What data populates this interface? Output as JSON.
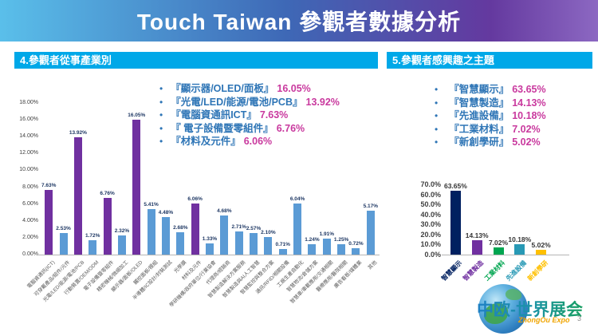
{
  "title": "Touch Taiwan 參觀者數據分析",
  "sections": {
    "left": {
      "header": "4.參觀者從事產業別",
      "bullets": [
        {
          "label": "『顯示器/OLED/面板』",
          "value": "16.05%"
        },
        {
          "label": "『光電/LED/能源/電池/PCB』",
          "value": "13.92%"
        },
        {
          "label": "『電腦資通訊ICT』",
          "value": "7.63%"
        },
        {
          "label": "『 電子設備暨零組件』",
          "value": "6.76%"
        },
        {
          "label": "『材料及元件』",
          "value": "6.06%"
        }
      ]
    },
    "right": {
      "header": "5.參觀者感興趣之主題",
      "bullets": [
        {
          "label": "『智慧顯示』",
          "value": "63.65%"
        },
        {
          "label": "『智慧製造』",
          "value": "14.13%"
        },
        {
          "label": "『先進設備』",
          "value": "10.18%"
        },
        {
          "label": "『工業材料』",
          "value": "7.02%"
        },
        {
          "label": "『新創學研』",
          "value": "5.02%"
        }
      ]
    }
  },
  "chart_data": [
    {
      "type": "bar",
      "title": "",
      "xlabel": "",
      "ylabel": "",
      "ylim": [
        0,
        18
      ],
      "grid": false,
      "legend": "none",
      "y_ticks": [
        "0.00%",
        "2.00%",
        "4.00%",
        "6.00%",
        "8.00%",
        "10.00%",
        "12.00%",
        "14.00%",
        "16.00%",
        "18.00%"
      ],
      "categories": [
        "電腦資通訊(ICT)",
        "可穿戴產品/組件/元件",
        "光電/LED/能源/電池/PCB",
        "行動裝置/OEM/ODM",
        "電子設備暨零組件",
        "精密機械/微細加工",
        "顯示器/面板/OLED",
        "觸控面板/模組",
        "半導體/IC設計/封裝測試",
        "光學膜",
        "材料及元件",
        "學研機構/政府單位/行業協會",
        "代理商/經銷商",
        "智慧製造解決方案服務",
        "智慧製造與AI人工智慧",
        "智慧監控與整合方案",
        "通訊/RFID/相關設備",
        "工廠生產自動化",
        "智慧物流/倉儲方案",
        "智慧車/車載應用/交通相關",
        "醫療應用/醫院相關",
        "廣告看板/媒體業",
        "其他"
      ],
      "values": [
        7.63,
        2.53,
        13.92,
        1.72,
        6.76,
        2.32,
        16.05,
        5.41,
        4.48,
        2.68,
        6.06,
        1.33,
        4.68,
        2.71,
        2.57,
        2.1,
        0.71,
        6.04,
        1.24,
        1.91,
        1.25,
        0.72,
        5.17
      ],
      "value_labels": [
        "7.63%",
        "2.53%",
        "13.92%",
        "1.72%",
        "6.76%",
        "2.32%",
        "16.05%",
        "5.41%",
        "4.48%",
        "2.68%",
        "6.06%",
        "1.33%",
        "4.68%",
        "2.71%",
        "2.57%",
        "2.10%",
        "0.71%",
        "6.04%",
        "1.24%",
        "1.91%",
        "1.25%",
        "0.72%",
        "5.17%"
      ],
      "highlight_indices": [
        0,
        2,
        4,
        6,
        10
      ],
      "colors": {
        "default": "#5B9BD5",
        "highlight": "#7030A0"
      }
    },
    {
      "type": "bar",
      "title": "",
      "xlabel": "",
      "ylabel": "",
      "ylim": [
        0,
        70
      ],
      "grid": false,
      "legend": "none",
      "y_ticks": [
        "0.0%",
        "10.0%",
        "20.0%",
        "30.0%",
        "40.0%",
        "50.0%",
        "60.0%",
        "70.0%"
      ],
      "categories": [
        "智慧顯示",
        "智慧製造",
        "工業材料",
        "先進設備",
        "新創學研"
      ],
      "values": [
        63.65,
        14.13,
        7.02,
        10.18,
        5.02
      ],
      "value_labels": [
        "63.65%",
        "14.13%",
        "7.02%",
        "10.18%",
        "5.02%"
      ],
      "bar_colors": [
        "#002060",
        "#7030A0",
        "#00A550",
        "#2899B5",
        "#FFC000"
      ]
    }
  ],
  "logo": {
    "main": "中欧-世界展会",
    "sub": "ZhongOu Expo"
  },
  "page_number": "3",
  "colors": {
    "title_gradient_start": "#5ABFEA",
    "title_gradient_end": "#8C68C2",
    "section_header_bg": "#00A8E8",
    "bullet_text": "#2E75B6",
    "bullet_value": "#C9399E",
    "bar_default": "#5B9BD5",
    "bar_highlight": "#7030A0"
  }
}
